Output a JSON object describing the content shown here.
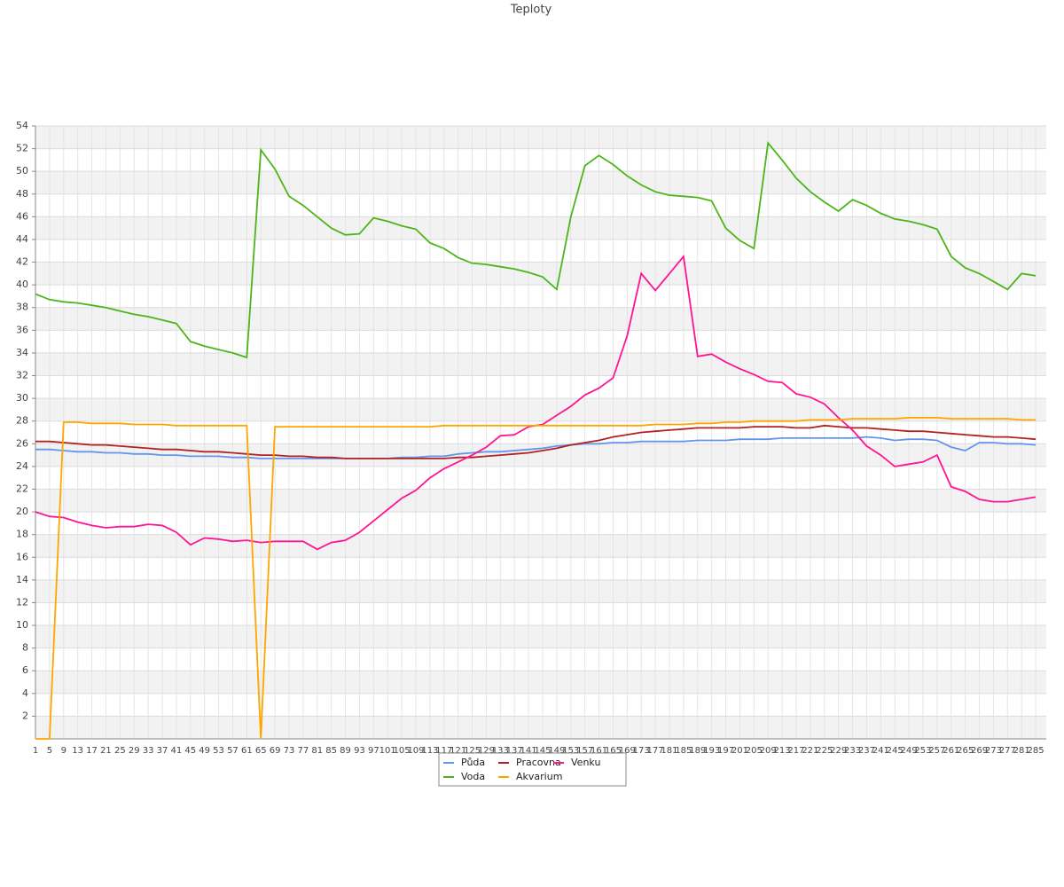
{
  "chart_data": {
    "type": "line",
    "title": "Teploty",
    "x": [
      1,
      5,
      9,
      13,
      17,
      21,
      25,
      29,
      33,
      37,
      41,
      45,
      49,
      53,
      57,
      61,
      65,
      69,
      73,
      77,
      81,
      85,
      89,
      93,
      97,
      101,
      105,
      109,
      113,
      117,
      121,
      125,
      129,
      133,
      137,
      141,
      145,
      149,
      153,
      157,
      161,
      165,
      169,
      173,
      177,
      181,
      185,
      189,
      193,
      197,
      201,
      205,
      209,
      213,
      217,
      221,
      225,
      229,
      233,
      237,
      241,
      245,
      249,
      253,
      257,
      261,
      265,
      269,
      273,
      277,
      281,
      285
    ],
    "xlim": [
      1,
      288
    ],
    "ylim": [
      0,
      54
    ],
    "yticks": [
      2,
      4,
      6,
      8,
      10,
      12,
      14,
      16,
      18,
      20,
      22,
      24,
      26,
      28,
      30,
      32,
      34,
      36,
      38,
      40,
      42,
      44,
      46,
      48,
      50,
      52,
      54
    ],
    "grid": true,
    "series": [
      {
        "name": "Půda",
        "color": "#6495ed",
        "values": [
          25.5,
          25.5,
          25.4,
          25.3,
          25.3,
          25.2,
          25.2,
          25.1,
          25.1,
          25.0,
          25.0,
          24.9,
          24.9,
          24.9,
          24.8,
          24.8,
          24.7,
          24.7,
          24.7,
          24.7,
          24.7,
          24.7,
          24.7,
          24.7,
          24.7,
          24.7,
          24.8,
          24.8,
          24.9,
          24.9,
          25.1,
          25.2,
          25.3,
          25.3,
          25.4,
          25.5,
          25.6,
          25.8,
          25.9,
          26.0,
          26.0,
          26.1,
          26.1,
          26.2,
          26.2,
          26.2,
          26.2,
          26.3,
          26.3,
          26.3,
          26.4,
          26.4,
          26.4,
          26.5,
          26.5,
          26.5,
          26.5,
          26.5,
          26.5,
          26.6,
          26.5,
          26.3,
          26.4,
          26.4,
          26.3,
          25.7,
          25.4,
          26.1,
          26.1,
          26.0,
          26.0,
          25.9
        ]
      },
      {
        "name": "Pracovna",
        "color": "#b22222",
        "values": [
          26.2,
          26.2,
          26.1,
          26.0,
          25.9,
          25.9,
          25.8,
          25.7,
          25.6,
          25.5,
          25.5,
          25.4,
          25.3,
          25.3,
          25.2,
          25.1,
          25.0,
          25.0,
          24.9,
          24.9,
          24.8,
          24.8,
          24.7,
          24.7,
          24.7,
          24.7,
          24.7,
          24.7,
          24.7,
          24.7,
          24.8,
          24.8,
          24.9,
          25.0,
          25.1,
          25.2,
          25.4,
          25.6,
          25.9,
          26.1,
          26.3,
          26.6,
          26.8,
          27.0,
          27.1,
          27.2,
          27.3,
          27.4,
          27.4,
          27.4,
          27.4,
          27.5,
          27.5,
          27.5,
          27.4,
          27.4,
          27.6,
          27.5,
          27.4,
          27.4,
          27.3,
          27.2,
          27.1,
          27.1,
          27.0,
          26.9,
          26.8,
          26.7,
          26.6,
          26.6,
          26.5,
          26.4
        ]
      },
      {
        "name": "Venku",
        "color": "#ff1493",
        "values": [
          20.0,
          19.6,
          19.5,
          19.1,
          18.8,
          18.6,
          18.7,
          18.7,
          18.9,
          18.8,
          18.2,
          17.1,
          17.7,
          17.6,
          17.4,
          17.5,
          17.3,
          17.4,
          17.4,
          17.4,
          16.7,
          17.3,
          17.5,
          18.2,
          19.2,
          20.2,
          21.2,
          21.9,
          23.0,
          23.8,
          24.4,
          25.0,
          25.7,
          26.7,
          26.8,
          27.5,
          27.7,
          28.5,
          29.3,
          30.3,
          30.9,
          31.8,
          35.5,
          41.0,
          39.5,
          41.0,
          42.5,
          33.7,
          33.9,
          33.2,
          32.6,
          32.1,
          31.5,
          31.4,
          30.4,
          30.1,
          29.5,
          28.3,
          27.2,
          25.8,
          25.0,
          24.0,
          24.2,
          24.4,
          25.0,
          22.2,
          21.8,
          21.1,
          20.9,
          20.9,
          21.1,
          21.3
        ]
      },
      {
        "name": "Voda",
        "color": "#4cb519",
        "values": [
          39.2,
          38.7,
          38.5,
          38.4,
          38.2,
          38.0,
          37.7,
          37.4,
          37.2,
          36.9,
          36.6,
          35.0,
          34.6,
          34.3,
          34.0,
          33.6,
          51.9,
          50.2,
          47.8,
          47.0,
          46.0,
          45.0,
          44.4,
          44.5,
          45.9,
          45.6,
          45.2,
          44.9,
          43.7,
          43.2,
          42.4,
          41.9,
          41.8,
          41.6,
          41.4,
          41.1,
          40.7,
          39.6,
          46.0,
          50.5,
          51.4,
          50.6,
          49.6,
          48.8,
          48.2,
          47.9,
          47.8,
          47.7,
          47.4,
          45.0,
          43.9,
          43.2,
          52.5,
          51.0,
          49.4,
          48.2,
          47.3,
          46.5,
          47.5,
          47.0,
          46.3,
          45.8,
          45.6,
          45.3,
          44.9,
          42.5,
          41.5,
          41.0,
          40.3,
          39.6,
          41.0,
          40.8
        ]
      },
      {
        "name": "Akvarium",
        "color": "#ffa500",
        "values": [
          0,
          0,
          27.9,
          27.9,
          27.8,
          27.8,
          27.8,
          27.7,
          27.7,
          27.7,
          27.6,
          27.6,
          27.6,
          27.6,
          27.6,
          27.6,
          0,
          27.5,
          27.5,
          27.5,
          27.5,
          27.5,
          27.5,
          27.5,
          27.5,
          27.5,
          27.5,
          27.5,
          27.5,
          27.6,
          27.6,
          27.6,
          27.6,
          27.6,
          27.6,
          27.6,
          27.6,
          27.6,
          27.6,
          27.6,
          27.6,
          27.6,
          27.6,
          27.6,
          27.7,
          27.7,
          27.7,
          27.8,
          27.8,
          27.9,
          27.9,
          28.0,
          28.0,
          28.0,
          28.0,
          28.1,
          28.1,
          28.1,
          28.2,
          28.2,
          28.2,
          28.2,
          28.3,
          28.3,
          28.3,
          28.2,
          28.2,
          28.2,
          28.2,
          28.2,
          28.1,
          28.1
        ]
      }
    ]
  }
}
